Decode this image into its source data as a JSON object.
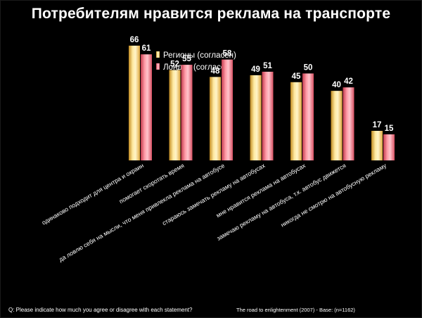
{
  "slide": {
    "title": "Потребителям нравится реклама на транспорте",
    "question": "Q: Please indicate how much you agree or disagree with each statement?",
    "source": "The road to enlightenment (2007) - Base: (n=1162)"
  },
  "colors": {
    "regions": "#ffde7c",
    "london": "#f07a88",
    "background": "#000000",
    "text": "#ffffff"
  },
  "chart_data": {
    "type": "bar",
    "title": "Потребителям нравится реклама на транспорте",
    "categories": [
      "одинаково подходит для центра и окраин",
      "помогает скоротать время",
      "да ловлю себя на мысли, что меня привлекла реклама на автобусе",
      "стараюсь замечать рекламу на автобусах",
      "мне нравится реклама на автобусах",
      "замечаю рекламу на автобуса, т.к. автобус движется",
      "никогда не смотрю на автобусную рекламу"
    ],
    "series": [
      {
        "name": "Регионы (согласен)",
        "values": [
          66,
          52,
          48,
          49,
          45,
          40,
          17
        ]
      },
      {
        "name": "Лондон (согласен)",
        "values": [
          61,
          55,
          58,
          51,
          50,
          42,
          15
        ]
      }
    ],
    "ylim": [
      0,
      70
    ],
    "legend_position": "top-center",
    "grid": false,
    "data_labels": true
  }
}
